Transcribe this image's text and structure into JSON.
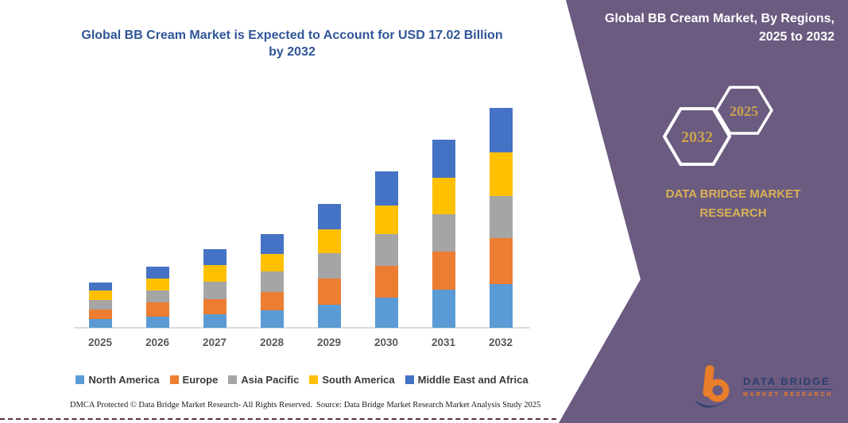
{
  "title": {
    "text": "Global BB Cream Market is Expected to Account for USD 17.02 Billion by 2032",
    "color": "#2F5597"
  },
  "panel": {
    "background_color": "#6B5B80",
    "heading_line1": "Global BB Cream Market, By Regions,",
    "heading_line2": "2025 to 2032",
    "hexagons": [
      {
        "year": "2032"
      },
      {
        "year": "2025"
      }
    ],
    "hex_year_color": "#C9A24E",
    "brand_line1": "DATA BRIDGE MARKET",
    "brand_line2": "RESEARCH",
    "brand_color": "#D8B254"
  },
  "logo": {
    "line1": "DATA BRIDGE",
    "line2": "MARKET RESEARCH",
    "orange": "#E87D2A",
    "navy": "#2C3E70"
  },
  "footer": {
    "dmca": "DMCA Protected © Data Bridge Market Research-  All Rights Reserved.",
    "source": "Source: Data Bridge Market Research  Market Analysis Study 2025"
  },
  "chart_data": {
    "type": "bar",
    "stacked": true,
    "unit": "USD Billion",
    "title": "Global BB Cream Market is Expected to Account for USD 17.02 Billion by 2032",
    "categories": [
      "2025",
      "2026",
      "2027",
      "2028",
      "2029",
      "2030",
      "2031",
      "2032"
    ],
    "series": [
      {
        "name": "North America",
        "color": "#5B9BD5",
        "values": [
          0.65,
          0.86,
          1.03,
          1.37,
          1.78,
          2.32,
          2.93,
          3.39
        ]
      },
      {
        "name": "Europe",
        "color": "#ED7D31",
        "values": [
          0.77,
          1.11,
          1.17,
          1.4,
          2.05,
          2.46,
          2.97,
          3.55
        ]
      },
      {
        "name": "Asia Pacific",
        "color": "#A5A5A5",
        "values": [
          0.74,
          0.92,
          1.39,
          1.58,
          1.95,
          2.46,
          2.87,
          3.28
        ]
      },
      {
        "name": "South America",
        "color": "#FFC000",
        "values": [
          0.71,
          0.92,
          1.27,
          1.37,
          1.85,
          2.26,
          2.87,
          3.36
        ]
      },
      {
        "name": "Middle East and Africa",
        "color": "#4472C4",
        "values": [
          0.65,
          0.92,
          1.23,
          1.56,
          1.97,
          2.62,
          2.91,
          3.44
        ]
      }
    ],
    "xlabel": "",
    "ylabel": "",
    "ylim": [
      0,
      18
    ],
    "grid": false,
    "y_axis_visible": false,
    "legend_position": "bottom"
  }
}
